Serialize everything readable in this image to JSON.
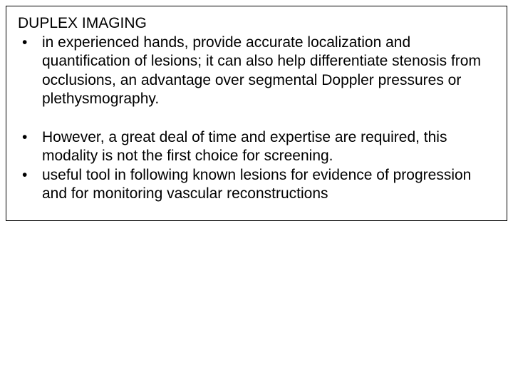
{
  "slide": {
    "title": "DUPLEX IMAGING",
    "bullets_group1": [
      " in experienced hands, provide accurate localization and quantification of lesions; it can also help differentiate stenosis from occlusions, an advantage over segmental Doppler pressures or plethysmography."
    ],
    "bullets_group2": [
      "However, a great deal of time and expertise are required, this modality is not the first choice for screening.",
      "useful tool in following known lesions for evidence of progression and for monitoring vascular reconstructions"
    ],
    "border_color": "#000000",
    "text_color": "#000000",
    "background_color": "#ffffff",
    "font_size_pt": 16
  }
}
